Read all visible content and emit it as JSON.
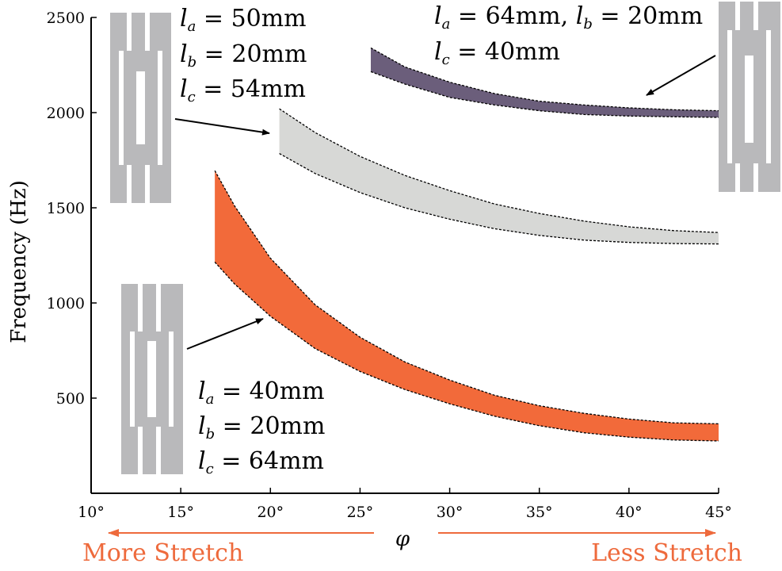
{
  "chart_data": {
    "type": "area",
    "xlabel": "φ",
    "ylabel": "Frequency (Hz)",
    "xlim": [
      10,
      45
    ],
    "ylim": [
      0,
      2500
    ],
    "x_ticks": [
      10,
      15,
      20,
      25,
      30,
      35,
      40,
      45
    ],
    "x_tick_labels": [
      "10°",
      "15°",
      "20°",
      "25°",
      "30°",
      "35°",
      "40°",
      "45°"
    ],
    "y_ticks": [
      500,
      1000,
      1500,
      2000,
      2500
    ],
    "y_tick_labels": [
      "500",
      "1000",
      "1500",
      "2000",
      "2500"
    ],
    "grid": false,
    "series": [
      {
        "color": "#f26a3a",
        "x": [
          16.9,
          18,
          20,
          22.5,
          25,
          27.5,
          30,
          32.5,
          35,
          37.5,
          40,
          42.5,
          45
        ],
        "upper": [
          1695,
          1510,
          1235,
          990,
          820,
          690,
          595,
          515,
          460,
          420,
          390,
          370,
          365
        ],
        "lower": [
          1215,
          1100,
          930,
          760,
          640,
          545,
          470,
          405,
          355,
          318,
          295,
          280,
          275
        ]
      },
      {
        "color": "#d7d8d6",
        "x": [
          20.5,
          22.5,
          25,
          27.5,
          30,
          32.5,
          35,
          37.5,
          40,
          42.5,
          45
        ],
        "upper": [
          2020,
          1895,
          1770,
          1670,
          1590,
          1520,
          1470,
          1430,
          1400,
          1380,
          1370
        ],
        "lower": [
          1785,
          1680,
          1580,
          1500,
          1440,
          1390,
          1355,
          1330,
          1318,
          1312,
          1310
        ]
      },
      {
        "color": "#6b5e7b",
        "x": [
          25.6,
          27.5,
          30,
          32.5,
          35,
          37.5,
          40,
          42.5,
          45
        ],
        "upper": [
          2340,
          2240,
          2160,
          2100,
          2060,
          2040,
          2025,
          2015,
          2010
        ],
        "lower": [
          2215,
          2150,
          2080,
          2040,
          2010,
          1990,
          1982,
          1978,
          1975
        ]
      }
    ],
    "annotations": [
      {
        "la": "40mm",
        "lb": "20mm",
        "lc": "64mm"
      },
      {
        "la": "50mm",
        "lb": "20mm",
        "lc": "54mm"
      },
      {
        "la": "64mm",
        "lb": "20mm",
        "lc": "40mm"
      }
    ],
    "bottom_labels": {
      "left": "More Stretch",
      "right": "Less Stretch"
    }
  }
}
